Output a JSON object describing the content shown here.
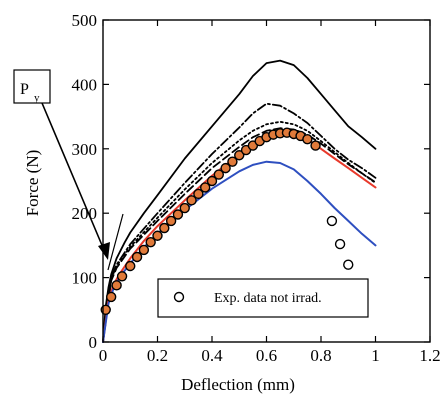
{
  "chart_data": {
    "type": "line",
    "xlabel": "Deflection (mm)",
    "ylabel": "Force (N)",
    "xlim": [
      0,
      1.2
    ],
    "ylim": [
      0,
      500
    ],
    "x_ticks": [
      "0",
      "0.2",
      "0.4",
      "0.6",
      "0.8",
      "1",
      "1.2"
    ],
    "y_ticks": [
      "0",
      "100",
      "200",
      "300",
      "400",
      "500"
    ],
    "grid": false,
    "legend_position": "bottom-right",
    "legend": [
      {
        "label": "Exp. data not irrad.",
        "marker": "open-circle"
      }
    ],
    "annotation": {
      "label_main": "P",
      "label_sub": "y",
      "points_to": {
        "x": 0.03,
        "y": 110
      }
    },
    "series": [
      {
        "style": "solid",
        "color": "#000000",
        "x": [
          0,
          0.01,
          0.02,
          0.03,
          0.05,
          0.08,
          0.1,
          0.15,
          0.2,
          0.3,
          0.4,
          0.5,
          0.55,
          0.6,
          0.65,
          0.7,
          0.75,
          0.8,
          0.85,
          0.9,
          0.95,
          1.0
        ],
        "y": [
          0,
          55,
          85,
          105,
          130,
          155,
          170,
          200,
          228,
          285,
          335,
          385,
          413,
          433,
          437,
          430,
          410,
          385,
          360,
          335,
          318,
          300
        ]
      },
      {
        "style": "dash-dot",
        "color": "#000000",
        "x": [
          0,
          0.03,
          0.05,
          0.1,
          0.2,
          0.3,
          0.4,
          0.5,
          0.55,
          0.6,
          0.65,
          0.7,
          0.75,
          0.8,
          0.85,
          0.9,
          0.95,
          1.0
        ],
        "y": [
          0,
          100,
          120,
          152,
          200,
          247,
          292,
          333,
          355,
          370,
          367,
          355,
          340,
          320,
          300,
          283,
          270,
          255
        ]
      },
      {
        "style": "dotted",
        "color": "#000000",
        "x": [
          0,
          0.03,
          0.05,
          0.1,
          0.2,
          0.3,
          0.4,
          0.5,
          0.55,
          0.6,
          0.65,
          0.7,
          0.75,
          0.8,
          0.85,
          0.9,
          0.95,
          1.0
        ],
        "y": [
          0,
          98,
          118,
          148,
          193,
          237,
          278,
          313,
          328,
          338,
          342,
          338,
          328,
          312,
          295,
          278,
          262,
          247
        ]
      },
      {
        "style": "dashed",
        "color": "#000000",
        "x": [
          0,
          0.03,
          0.05,
          0.1,
          0.2,
          0.3,
          0.4,
          0.5,
          0.55,
          0.6,
          0.65,
          0.7,
          0.75,
          0.8,
          0.85,
          0.9,
          0.95,
          1.0
        ],
        "y": [
          0,
          95,
          115,
          145,
          188,
          230,
          270,
          303,
          318,
          328,
          332,
          330,
          322,
          308,
          292,
          276,
          262,
          248
        ]
      },
      {
        "style": "solid",
        "color": "#e8392b",
        "x": [
          0,
          0.02,
          0.04,
          0.06,
          0.1,
          0.15,
          0.2,
          0.3,
          0.4,
          0.5,
          0.55,
          0.6,
          0.65,
          0.7,
          0.75,
          0.8,
          0.85,
          0.9,
          0.95,
          1.0
        ],
        "y": [
          0,
          65,
          90,
          105,
          130,
          157,
          180,
          220,
          258,
          292,
          307,
          318,
          323,
          322,
          315,
          300,
          285,
          270,
          255,
          240
        ]
      },
      {
        "style": "solid",
        "color": "#2e4fc0",
        "x": [
          0,
          0.02,
          0.04,
          0.06,
          0.1,
          0.15,
          0.2,
          0.3,
          0.4,
          0.5,
          0.55,
          0.6,
          0.65,
          0.7,
          0.75,
          0.8,
          0.85,
          0.9,
          0.95,
          1.0
        ],
        "y": [
          0,
          60,
          85,
          100,
          122,
          147,
          168,
          205,
          238,
          265,
          275,
          280,
          278,
          268,
          250,
          230,
          208,
          188,
          168,
          150
        ]
      },
      {
        "type": "scatter",
        "marker": "open-circle",
        "fill": "#e07a3a",
        "edge": "#000000",
        "x": [
          0.01,
          0.03,
          0.05,
          0.07,
          0.1,
          0.125,
          0.15,
          0.175,
          0.2,
          0.225,
          0.25,
          0.275,
          0.3,
          0.325,
          0.35,
          0.375,
          0.4,
          0.425,
          0.45,
          0.475,
          0.5,
          0.525,
          0.55,
          0.575,
          0.6,
          0.625,
          0.65,
          0.675,
          0.7,
          0.725,
          0.75,
          0.78
        ],
        "y": [
          50,
          70,
          88,
          102,
          118,
          132,
          143,
          155,
          165,
          177,
          188,
          198,
          208,
          220,
          230,
          240,
          250,
          260,
          270,
          280,
          290,
          298,
          305,
          312,
          318,
          322,
          324,
          325,
          323,
          320,
          315,
          305
        ]
      },
      {
        "type": "scatter",
        "marker": "open-circle",
        "fill": "#ffffff",
        "edge": "#000000",
        "x": [
          0.84,
          0.87,
          0.9
        ],
        "y": [
          188,
          152,
          120
        ]
      }
    ]
  }
}
